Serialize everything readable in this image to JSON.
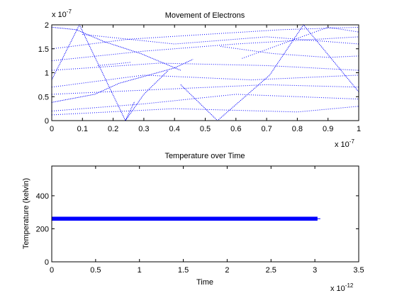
{
  "chart_data": [
    {
      "type": "scatter",
      "title": "Movement of Electrons",
      "xlabel": "",
      "ylabel": "",
      "x_exponent_label": "x 10",
      "x_exponent_power": "-7",
      "y_exponent_label": "x 10",
      "y_exponent_power": "-7",
      "xlim": [
        0,
        1
      ],
      "ylim": [
        0,
        2
      ],
      "xticks": [
        "0",
        "0.1",
        "0.2",
        "0.3",
        "0.4",
        "0.5",
        "0.6",
        "0.7",
        "0.8",
        "0.9",
        "1"
      ],
      "yticks": [
        "0",
        "0.5",
        "1",
        "1.5",
        "2"
      ],
      "grid": false,
      "color": "#0000ff",
      "style": "dotted trajectories",
      "trajectories": [
        [
          [
            0.0,
            0.85
          ],
          [
            0.09,
            2.0
          ],
          [
            0.24,
            0.0
          ],
          [
            0.27,
            0.4
          ]
        ],
        [
          [
            0.0,
            1.95
          ],
          [
            0.08,
            1.9
          ],
          [
            0.17,
            1.65
          ],
          [
            0.29,
            1.4
          ],
          [
            0.42,
            1.05
          ]
        ],
        [
          [
            0.0,
            0.38
          ],
          [
            0.14,
            0.55
          ],
          [
            0.22,
            0.78
          ],
          [
            0.4,
            1.1
          ],
          [
            0.46,
            1.28
          ]
        ],
        [
          [
            0.24,
            0.0
          ],
          [
            0.3,
            0.55
          ],
          [
            0.38,
            1.05
          ]
        ],
        [
          [
            0.42,
            0.75
          ],
          [
            0.54,
            0.0
          ],
          [
            0.71,
            0.95
          ],
          [
            0.82,
            2.0
          ],
          [
            1.0,
            0.6
          ]
        ],
        [
          [
            0.62,
            1.3
          ],
          [
            0.9,
            1.95
          ],
          [
            1.0,
            1.85
          ]
        ],
        [
          [
            0.55,
            1.55
          ],
          [
            0.72,
            1.4
          ],
          [
            0.9,
            1.32
          ],
          [
            1.0,
            1.35
          ]
        ],
        [
          [
            0.0,
            1.5
          ],
          [
            0.25,
            1.7
          ],
          [
            0.5,
            1.8
          ],
          [
            0.75,
            1.9
          ],
          [
            1.0,
            1.95
          ]
        ],
        [
          [
            0.0,
            1.25
          ],
          [
            0.3,
            1.45
          ],
          [
            0.6,
            1.6
          ],
          [
            1.0,
            1.75
          ]
        ],
        [
          [
            0.0,
            1.05
          ],
          [
            0.35,
            1.2
          ],
          [
            0.7,
            1.15
          ],
          [
            1.0,
            1.05
          ]
        ],
        [
          [
            0.0,
            0.7
          ],
          [
            0.3,
            0.95
          ],
          [
            0.65,
            0.85
          ],
          [
            1.0,
            0.95
          ]
        ],
        [
          [
            0.0,
            0.2
          ],
          [
            0.3,
            0.35
          ],
          [
            0.6,
            0.55
          ],
          [
            1.0,
            0.45
          ]
        ],
        [
          [
            0.0,
            0.12
          ],
          [
            0.4,
            0.25
          ],
          [
            0.8,
            0.18
          ],
          [
            1.0,
            0.3
          ]
        ],
        [
          [
            0.1,
            1.8
          ],
          [
            0.4,
            1.6
          ],
          [
            0.7,
            1.75
          ],
          [
            1.0,
            1.6
          ]
        ],
        [
          [
            0.0,
            0.55
          ],
          [
            0.35,
            0.65
          ],
          [
            0.7,
            0.75
          ],
          [
            1.0,
            0.7
          ]
        ],
        [
          [
            0.15,
            1.15
          ],
          [
            0.2,
            1.18
          ],
          [
            0.26,
            1.22
          ]
        ]
      ]
    },
    {
      "type": "line",
      "title": "Temperature over Time",
      "xlabel": "Time",
      "ylabel": "Temperature (kelvin)",
      "x_exponent_label": "x 10",
      "x_exponent_power": "-12",
      "xlim": [
        0,
        3.5
      ],
      "ylim": [
        0,
        580
      ],
      "xticks": [
        "0",
        "0.5",
        "1",
        "1.5",
        "2",
        "2.5",
        "3",
        "3.5"
      ],
      "yticks": [
        "0",
        "200",
        "400"
      ],
      "grid": false,
      "color": "#0000ff",
      "series": [
        {
          "x": [
            0,
            3.03
          ],
          "y_min": [
            249,
            249
          ],
          "y_max": [
            273,
            273
          ],
          "y": [
            261,
            261
          ]
        }
      ]
    }
  ]
}
